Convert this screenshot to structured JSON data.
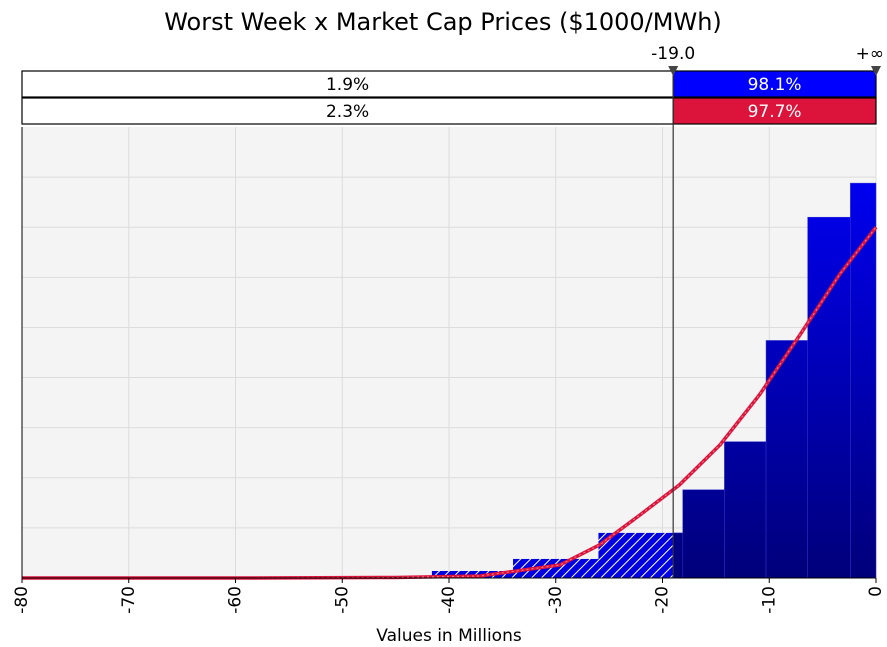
{
  "chart_data": {
    "type": "histogram",
    "title": "Worst Week x Market Cap Prices ($1000/MWh)",
    "x_label": "Values in Millions",
    "bins": [
      -41.6,
      -34.0,
      -26.0,
      -18.1,
      -14.2,
      -10.3,
      -6.4,
      -2.4,
      0
    ],
    "series": [
      {
        "type": "histogram",
        "color": "#0000ff",
        "color_dark": "#00007a",
        "values": [
          0.14,
          0.38,
          0.9,
          1.76,
          2.72,
          4.74,
          7.2,
          7.88
        ]
      },
      {
        "type": "line",
        "color": "#dc143c",
        "x": [
          -80,
          -60,
          -45,
          -37.1,
          -29.6,
          -25.9,
          -22.1,
          -18.4,
          -14.6,
          -10.9,
          -7.1,
          -3.4,
          0
        ],
        "values": [
          0,
          0,
          0.01,
          0.04,
          0.26,
          0.66,
          1.26,
          1.86,
          2.66,
          3.66,
          4.86,
          6.06,
          7.0
        ]
      }
    ],
    "xlim": [
      -80,
      0
    ],
    "xticks": [
      -80,
      -70,
      -60,
      -50,
      -40,
      -30,
      -20,
      -10,
      0
    ],
    "ylim": [
      0,
      9
    ],
    "yticks": [
      1,
      2,
      3,
      4,
      5,
      6,
      7,
      8
    ],
    "show_ytick_labels": false,
    "grid": true,
    "left_delimiter": {
      "value": -19.0,
      "label": "-19.0"
    },
    "right_delimiter_label": "+∞",
    "bands": [
      {
        "values": [
          1.9,
          98.1
        ],
        "value_labels": [
          "1.9%",
          "98.1%"
        ],
        "color": "#0000ff"
      },
      {
        "values": [
          2.3,
          97.7
        ],
        "value_labels": [
          "2.3%",
          "97.7%"
        ],
        "color": "#dc143c"
      }
    ]
  }
}
